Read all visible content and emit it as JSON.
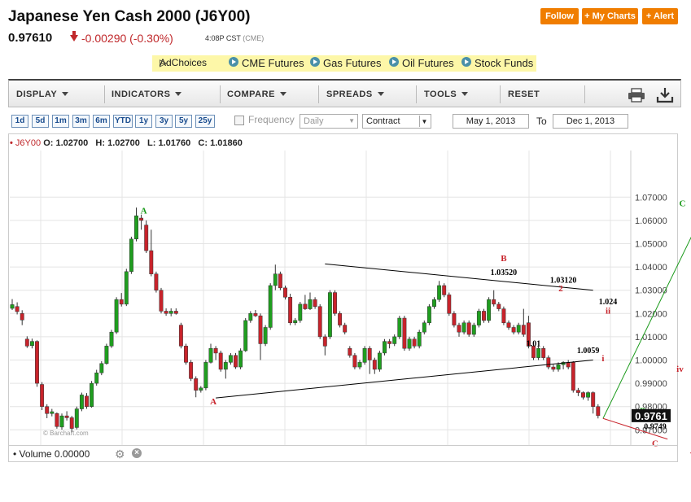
{
  "header": {
    "title": "Japanese Yen Cash 2000 (J6Y00)",
    "last_price": "0.97610",
    "change": "-0.00290 (-0.30%)",
    "time": "4:08P CST",
    "exchange": "(CME)",
    "buttons": {
      "follow": "Follow",
      "my_charts": "+ My Charts",
      "alert": "+ Alert"
    }
  },
  "adbar": {
    "adchoices": "AdChoices",
    "links": [
      "CME Futures",
      "Gas Futures",
      "Oil Futures",
      "Stock Funds"
    ]
  },
  "toolbar": {
    "items": [
      "DISPLAY",
      "INDICATORS",
      "COMPARE",
      "SPREADS",
      "TOOLS",
      "RESET"
    ],
    "print_icon": "printer-icon",
    "download_icon": "download-icon"
  },
  "period_buttons": [
    "1d",
    "5d",
    "1m",
    "3m",
    "6m",
    "YTD",
    "1y",
    "3y",
    "5y",
    "25y"
  ],
  "controls": {
    "frequency_label": "Frequency",
    "frequency_value": "Daily",
    "contract_value": "Contract",
    "from_date": "May 1, 2013",
    "to_label": "To",
    "to_date": "Dec 1, 2013"
  },
  "ohlc": {
    "symbol": "J6Y00",
    "open_label": "O:",
    "open": "1.02700",
    "high_label": "H:",
    "high": "1.02700",
    "low_label": "L:",
    "low": "1.01760",
    "close_label": "C:",
    "close": "1.01860"
  },
  "volume_label": "Volume 0.00000",
  "watermark": "© Barchart.com",
  "colors": {
    "up": "#1f9e1f",
    "down": "#c8232b",
    "accent": "#f07d00",
    "wave_green": "#1a9a1a",
    "wave_red": "#c8232b"
  },
  "chart_data": {
    "type": "candlestick",
    "ylim": [
      0.966,
      1.076
    ],
    "y_ticks": [
      "1.07000",
      "1.06000",
      "1.05000",
      "1.04000",
      "1.03000",
      "1.02000",
      "1.01000",
      "1.00000",
      "0.99000",
      "0.98000",
      "0.97000"
    ],
    "last_value_label": "0.9761",
    "candles": [
      {
        "o": 1.0222,
        "c": 1.0238,
        "h": 1.0262,
        "l": 1.0215
      },
      {
        "o": 1.023,
        "c": 1.0208,
        "h": 1.0248,
        "l": 1.0196
      },
      {
        "o": 1.02,
        "c": 1.0172,
        "h": 1.0214,
        "l": 1.015
      },
      {
        "o": 1.009,
        "c": 1.006,
        "h": 1.0102,
        "l": 1.0052
      },
      {
        "o": 1.0062,
        "c": 1.008,
        "h": 1.0092,
        "l": 1.005
      },
      {
        "o": 1.008,
        "c": 0.99,
        "h": 1.0085,
        "l": 0.9885
      },
      {
        "o": 0.9895,
        "c": 0.98,
        "h": 0.9905,
        "l": 0.9785
      },
      {
        "o": 0.98,
        "c": 0.977,
        "h": 0.981,
        "l": 0.975
      },
      {
        "o": 0.977,
        "c": 0.9778,
        "h": 0.979,
        "l": 0.9758
      },
      {
        "o": 0.977,
        "c": 0.9714,
        "h": 0.9775,
        "l": 0.9705
      },
      {
        "o": 0.9712,
        "c": 0.976,
        "h": 0.977,
        "l": 0.97
      },
      {
        "o": 0.976,
        "c": 0.9752,
        "h": 0.978,
        "l": 0.974
      },
      {
        "o": 0.9752,
        "c": 0.9706,
        "h": 0.976,
        "l": 0.969
      },
      {
        "o": 0.971,
        "c": 0.979,
        "h": 0.98,
        "l": 0.9702
      },
      {
        "o": 0.979,
        "c": 0.985,
        "h": 0.986,
        "l": 0.978
      },
      {
        "o": 0.9845,
        "c": 0.98,
        "h": 0.9858,
        "l": 0.979
      },
      {
        "o": 0.98,
        "c": 0.99,
        "h": 0.991,
        "l": 0.9795
      },
      {
        "o": 0.99,
        "c": 0.9945,
        "h": 0.9958,
        "l": 0.989
      },
      {
        "o": 0.9945,
        "c": 0.9985,
        "h": 0.9995,
        "l": 0.9935
      },
      {
        "o": 0.9985,
        "c": 1.006,
        "h": 1.007,
        "l": 0.998
      },
      {
        "o": 1.006,
        "c": 1.012,
        "h": 1.013,
        "l": 1.0052
      },
      {
        "o": 1.012,
        "c": 1.026,
        "h": 1.027,
        "l": 1.0112
      },
      {
        "o": 1.026,
        "c": 1.024,
        "h": 1.0288,
        "l": 1.023
      },
      {
        "o": 1.024,
        "c": 1.038,
        "h": 1.0392,
        "l": 1.0232
      },
      {
        "o": 1.038,
        "c": 1.052,
        "h": 1.053,
        "l": 1.037
      },
      {
        "o": 1.052,
        "c": 1.062,
        "h": 1.0655,
        "l": 1.051
      },
      {
        "o": 1.061,
        "c": 1.06,
        "h": 1.0625,
        "l": 1.056
      },
      {
        "o": 1.058,
        "c": 1.047,
        "h": 1.06,
        "l": 1.046
      },
      {
        "o": 1.047,
        "c": 1.037,
        "h": 1.056,
        "l": 1.036
      },
      {
        "o": 1.037,
        "c": 1.03,
        "h": 1.038,
        "l": 1.029
      },
      {
        "o": 1.03,
        "c": 1.021,
        "h": 1.031,
        "l": 1.02
      },
      {
        "o": 1.021,
        "c": 1.02,
        "h": 1.0222,
        "l": 1.019
      },
      {
        "o": 1.02,
        "c": 1.021,
        "h": 1.0222,
        "l": 1.0188
      },
      {
        "o": 1.021,
        "c": 1.02,
        "h": 1.0222,
        "l": 1.0195
      },
      {
        "o": 1.015,
        "c": 1.006,
        "h": 1.016,
        "l": 1.005
      },
      {
        "o": 1.006,
        "c": 0.999,
        "h": 1.007,
        "l": 0.998
      },
      {
        "o": 0.999,
        "c": 0.992,
        "h": 1.0,
        "l": 0.991
      },
      {
        "o": 0.992,
        "c": 0.987,
        "h": 0.993,
        "l": 0.984
      },
      {
        "o": 0.987,
        "c": 0.988,
        "h": 0.9888,
        "l": 0.986
      },
      {
        "o": 0.988,
        "c": 0.999,
        "h": 1.0,
        "l": 0.987
      },
      {
        "o": 0.999,
        "c": 1.005,
        "h": 1.007,
        "l": 0.9985
      },
      {
        "o": 1.005,
        "c": 1.003,
        "h": 1.006,
        "l": 1.0
      },
      {
        "o": 1.003,
        "c": 0.996,
        "h": 1.004,
        "l": 0.995
      },
      {
        "o": 0.996,
        "c": 0.999,
        "h": 1.0,
        "l": 0.992
      },
      {
        "o": 0.999,
        "c": 1.002,
        "h": 1.003,
        "l": 0.998
      },
      {
        "o": 1.002,
        "c": 0.997,
        "h": 1.003,
        "l": 0.9962
      },
      {
        "o": 0.997,
        "c": 1.004,
        "h": 1.005,
        "l": 0.996
      },
      {
        "o": 1.004,
        "c": 1.017,
        "h": 1.018,
        "l": 1.0035
      },
      {
        "o": 1.017,
        "c": 1.02,
        "h": 1.021,
        "l": 1.016
      },
      {
        "o": 1.02,
        "c": 1.019,
        "h": 1.0215,
        "l": 1.0185
      },
      {
        "o": 1.019,
        "c": 1.007,
        "h": 1.02,
        "l": 1.0
      },
      {
        "o": 1.007,
        "c": 1.014,
        "h": 1.015,
        "l": 1.006
      },
      {
        "o": 1.014,
        "c": 1.032,
        "h": 1.033,
        "l": 1.013
      },
      {
        "o": 1.032,
        "c": 1.037,
        "h": 1.041,
        "l": 1.03
      },
      {
        "o": 1.037,
        "c": 1.031,
        "h": 1.038,
        "l": 1.03
      },
      {
        "o": 1.031,
        "c": 1.027,
        "h": 1.032,
        "l": 1.026
      },
      {
        "o": 1.027,
        "c": 1.016,
        "h": 1.0285,
        "l": 1.015
      },
      {
        "o": 1.016,
        "c": 1.017,
        "h": 1.018,
        "l": 1.015
      },
      {
        "o": 1.017,
        "c": 1.024,
        "h": 1.025,
        "l": 1.016
      },
      {
        "o": 1.024,
        "c": 1.022,
        "h": 1.028,
        "l": 1.0215
      },
      {
        "o": 1.022,
        "c": 1.026,
        "h": 1.029,
        "l": 1.0215
      },
      {
        "o": 1.026,
        "c": 1.023,
        "h": 1.027,
        "l": 1.022
      },
      {
        "o": 1.023,
        "c": 1.01,
        "h": 1.024,
        "l": 1.009
      },
      {
        "o": 1.01,
        "c": 1.006,
        "h": 1.011,
        "l": 1.002
      },
      {
        "o": 1.01,
        "c": 1.029,
        "h": 1.03,
        "l": 1.009
      },
      {
        "o": 1.029,
        "c": 1.02,
        "h": 1.03,
        "l": 1.019
      },
      {
        "o": 1.02,
        "c": 1.015,
        "h": 1.021,
        "l": 1.014
      },
      {
        "o": 1.015,
        "c": 1.012,
        "h": 1.016,
        "l": 1.011
      },
      {
        "o": 1.005,
        "c": 1.002,
        "h": 1.006,
        "l": 1.001
      },
      {
        "o": 1.002,
        "c": 0.997,
        "h": 1.003,
        "l": 0.996
      },
      {
        "o": 0.997,
        "c": 0.999,
        "h": 1.0,
        "l": 0.996
      },
      {
        "o": 0.999,
        "c": 1.005,
        "h": 1.006,
        "l": 0.998
      },
      {
        "o": 1.005,
        "c": 1.0,
        "h": 1.006,
        "l": 0.994
      },
      {
        "o": 1.0,
        "c": 0.996,
        "h": 1.001,
        "l": 0.994
      },
      {
        "o": 0.996,
        "c": 1.003,
        "h": 1.004,
        "l": 0.995
      },
      {
        "o": 1.003,
        "c": 1.008,
        "h": 1.009,
        "l": 1.002
      },
      {
        "o": 1.008,
        "c": 1.007,
        "h": 1.009,
        "l": 1.005
      },
      {
        "o": 1.007,
        "c": 1.01,
        "h": 1.011,
        "l": 1.006
      },
      {
        "o": 1.01,
        "c": 1.018,
        "h": 1.019,
        "l": 1.009
      },
      {
        "o": 1.018,
        "c": 1.005,
        "h": 1.019,
        "l": 1.004
      },
      {
        "o": 1.005,
        "c": 1.009,
        "h": 1.01,
        "l": 1.004
      },
      {
        "o": 1.009,
        "c": 1.006,
        "h": 1.01,
        "l": 1.005
      },
      {
        "o": 1.006,
        "c": 1.012,
        "h": 1.013,
        "l": 1.005
      },
      {
        "o": 1.012,
        "c": 1.016,
        "h": 1.017,
        "l": 1.011
      },
      {
        "o": 1.016,
        "c": 1.023,
        "h": 1.024,
        "l": 1.015
      },
      {
        "o": 1.023,
        "c": 1.026,
        "h": 1.027,
        "l": 1.022
      },
      {
        "o": 1.026,
        "c": 1.032,
        "h": 1.034,
        "l": 1.025
      },
      {
        "o": 1.032,
        "c": 1.028,
        "h": 1.033,
        "l": 1.027
      },
      {
        "o": 1.028,
        "c": 1.02,
        "h": 1.029,
        "l": 1.019
      },
      {
        "o": 1.02,
        "c": 1.015,
        "h": 1.021,
        "l": 1.014
      },
      {
        "o": 1.015,
        "c": 1.012,
        "h": 1.016,
        "l": 1.01
      },
      {
        "o": 1.012,
        "c": 1.016,
        "h": 1.017,
        "l": 1.011
      },
      {
        "o": 1.016,
        "c": 1.011,
        "h": 1.017,
        "l": 1.01
      },
      {
        "o": 1.011,
        "c": 1.015,
        "h": 1.016,
        "l": 1.01
      },
      {
        "o": 1.015,
        "c": 1.021,
        "h": 1.022,
        "l": 1.014
      },
      {
        "o": 1.021,
        "c": 1.017,
        "h": 1.022,
        "l": 1.016
      },
      {
        "o": 1.017,
        "c": 1.026,
        "h": 1.027,
        "l": 1.016
      },
      {
        "o": 1.026,
        "c": 1.024,
        "h": 1.03,
        "l": 1.023
      },
      {
        "o": 1.024,
        "c": 1.022,
        "h": 1.025,
        "l": 1.021
      },
      {
        "o": 1.022,
        "c": 1.016,
        "h": 1.023,
        "l": 1.015
      },
      {
        "o": 1.016,
        "c": 1.014,
        "h": 1.017,
        "l": 1.013
      },
      {
        "o": 1.014,
        "c": 1.012,
        "h": 1.015,
        "l": 1.011
      },
      {
        "o": 1.012,
        "c": 1.015,
        "h": 1.016,
        "l": 1.011
      },
      {
        "o": 1.015,
        "c": 1.011,
        "h": 1.022,
        "l": 1.01
      },
      {
        "o": 1.016,
        "c": 1.006,
        "h": 1.019,
        "l": 1.005
      },
      {
        "o": 1.006,
        "c": 1.001,
        "h": 1.007,
        "l": 1.0
      },
      {
        "o": 1.001,
        "c": 1.005,
        "h": 1.006,
        "l": 1.0
      },
      {
        "o": 1.005,
        "c": 1.001,
        "h": 1.006,
        "l": 1.0
      },
      {
        "o": 1.001,
        "c": 0.997,
        "h": 1.002,
        "l": 0.996
      },
      {
        "o": 0.997,
        "c": 0.996,
        "h": 0.998,
        "l": 0.995
      },
      {
        "o": 0.996,
        "c": 0.998,
        "h": 0.999,
        "l": 0.995
      },
      {
        "o": 0.998,
        "c": 0.999,
        "h": 0.9995,
        "l": 0.996
      },
      {
        "o": 0.999,
        "c": 0.997,
        "h": 1.0,
        "l": 0.996
      },
      {
        "o": 0.999,
        "c": 0.987,
        "h": 0.9995,
        "l": 0.986
      },
      {
        "o": 0.987,
        "c": 0.986,
        "h": 0.988,
        "l": 0.9845
      },
      {
        "o": 0.986,
        "c": 0.984,
        "h": 0.9865,
        "l": 0.983
      },
      {
        "o": 0.984,
        "c": 0.986,
        "h": 0.9865,
        "l": 0.9825
      },
      {
        "o": 0.986,
        "c": 0.98,
        "h": 0.9865,
        "l": 0.977
      },
      {
        "o": 0.98,
        "c": 0.9761,
        "h": 0.981,
        "l": 0.9749
      }
    ],
    "trendlines": [
      {
        "x1": 63,
        "y1": 1.0413,
        "x2": 117,
        "y2": 1.03,
        "color": "#000000"
      },
      {
        "x1": 41,
        "y1": 0.9837,
        "x2": 117,
        "y2": 1.0,
        "color": "#000000"
      },
      {
        "x1": 119,
        "y1": 0.9749,
        "x2": 140,
        "y2": 1.067,
        "color": "#1a9a1a"
      },
      {
        "x1": 119,
        "y1": 0.9749,
        "x2": 132,
        "y2": 0.966,
        "color": "#c8232b"
      }
    ],
    "annotations": [
      {
        "x": 26.5,
        "y": 1.063,
        "text": "A",
        "color": "#1a9a1a"
      },
      {
        "x": 40.5,
        "y": 0.981,
        "text": "A",
        "color": "#c8232b"
      },
      {
        "x": 99,
        "y": 1.0425,
        "text": "B",
        "color": "#c8232b"
      },
      {
        "x": 99,
        "y": 1.0365,
        "text": "1.03520",
        "color": "#000000"
      },
      {
        "x": 111,
        "y": 1.0332,
        "text": "1.03120",
        "color": "#000000"
      },
      {
        "x": 110.5,
        "y": 1.0295,
        "text": "2",
        "color": "#c8232b"
      },
      {
        "x": 120,
        "y": 1.024,
        "text": "1.024",
        "color": "#000000"
      },
      {
        "x": 120,
        "y": 1.02,
        "text": "ii",
        "color": "#c8232b"
      },
      {
        "x": 105,
        "y": 1.006,
        "text": "1.01",
        "color": "#000000"
      },
      {
        "x": 105,
        "y": 1.001,
        "text": "1",
        "color": "#c8232b"
      },
      {
        "x": 116,
        "y": 1.003,
        "text": "1.0059",
        "color": "#000000"
      },
      {
        "x": 119,
        "y": 0.9995,
        "text": "i",
        "color": "#c8232b"
      },
      {
        "x": 134.5,
        "y": 0.995,
        "text": "iv",
        "color": "#c8232b"
      },
      {
        "x": 135,
        "y": 1.066,
        "text": "C",
        "color": "#1a9a1a"
      },
      {
        "x": 127,
        "y": 0.977,
        "text": "B",
        "color": "#1a9a1a"
      },
      {
        "x": 129.5,
        "y": 0.974,
        "text": "iii",
        "color": "#c8232b"
      },
      {
        "x": 129.5,
        "y": 0.9702,
        "text": "0.9749",
        "color": "#000000"
      },
      {
        "x": 129.5,
        "y": 0.963,
        "text": "C",
        "color": "#c8232b"
      },
      {
        "x": 137,
        "y": 0.9586,
        "text": "v",
        "color": "#c8232b"
      }
    ]
  }
}
